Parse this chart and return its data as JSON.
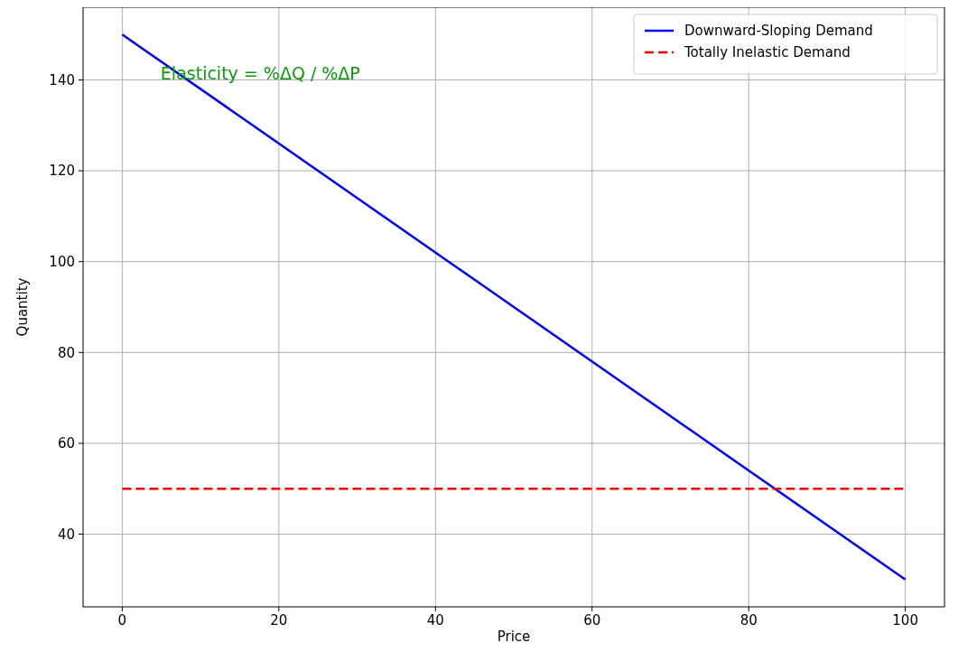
{
  "chart_data": {
    "type": "line",
    "xlabel": "Price",
    "ylabel": "Quantity",
    "xlim": [
      -5,
      105
    ],
    "ylim": [
      24,
      156
    ],
    "xticks": [
      0,
      20,
      40,
      60,
      80,
      100
    ],
    "yticks": [
      40,
      60,
      80,
      100,
      120,
      140
    ],
    "x": [
      0,
      100
    ],
    "series": [
      {
        "name": "Downward-Sloping Demand",
        "color": "#0000ff",
        "values": [
          150,
          30
        ],
        "line_style": "solid"
      },
      {
        "name": "Totally Inelastic Demand",
        "color": "#ff0000",
        "values": [
          50,
          50
        ],
        "line_style": "dashed"
      }
    ],
    "annotations": [
      "Elasticity = %ΔQ / %ΔP"
    ],
    "grid": true,
    "legend": "top right",
    "marker": "none"
  }
}
